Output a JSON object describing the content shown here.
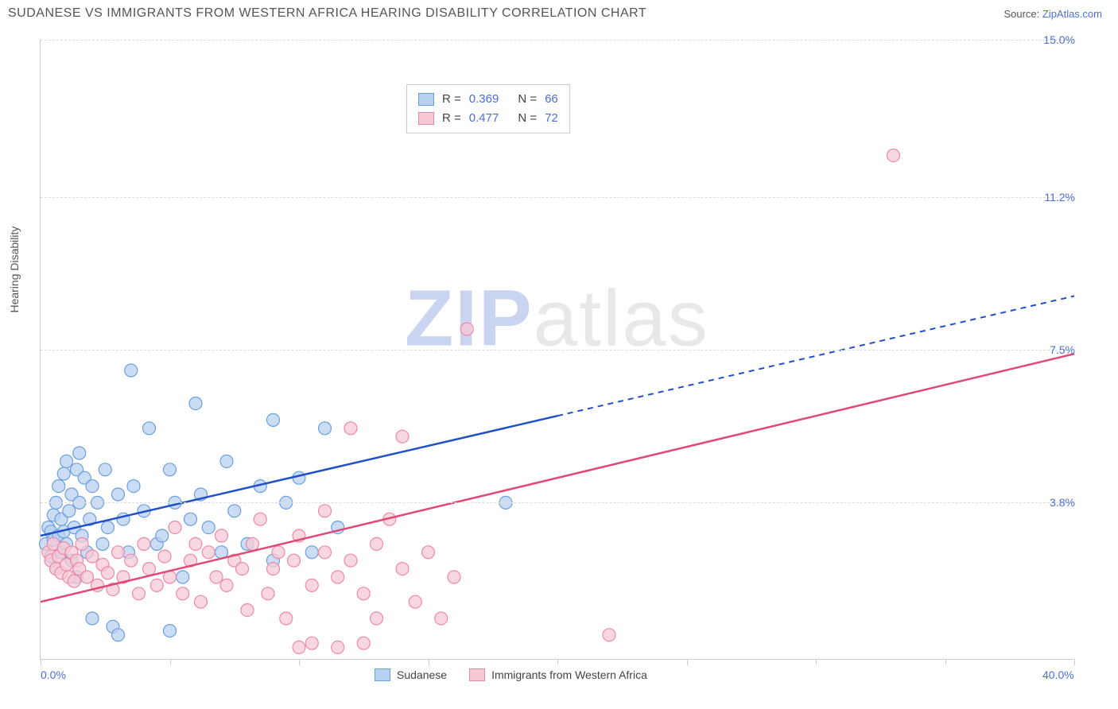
{
  "header": {
    "title": "SUDANESE VS IMMIGRANTS FROM WESTERN AFRICA HEARING DISABILITY CORRELATION CHART",
    "source_prefix": "Source: ",
    "source_link": "ZipAtlas.com"
  },
  "chart": {
    "type": "scatter",
    "y_title": "Hearing Disability",
    "background_color": "#ffffff",
    "grid_color": "#dddddd",
    "axis_color": "#cccccc",
    "xlim": [
      0,
      40
    ],
    "ylim": [
      0,
      15
    ],
    "x_ticks": [
      0,
      5,
      10,
      15,
      20,
      25,
      30,
      35,
      40
    ],
    "x_labels": [
      {
        "v": 0,
        "t": "0.0%"
      },
      {
        "v": 40,
        "t": "40.0%"
      }
    ],
    "y_labels": [
      {
        "v": 3.8,
        "t": "3.8%"
      },
      {
        "v": 7.5,
        "t": "7.5%"
      },
      {
        "v": 11.2,
        "t": "11.2%"
      },
      {
        "v": 15.0,
        "t": "15.0%"
      }
    ],
    "watermark": {
      "bold": "ZIP",
      "rest": "atlas"
    },
    "series": [
      {
        "name": "Sudanese",
        "fill": "#b9d1f0",
        "stroke": "#6a9fe0",
        "line_color": "#2050c8",
        "R": "0.369",
        "N": "66",
        "trend": {
          "x1": 0,
          "y1": 3.0,
          "x2": 20,
          "y2": 5.9,
          "x2_dash": 40,
          "y2_dash": 8.8
        },
        "points": [
          [
            0.2,
            2.8
          ],
          [
            0.3,
            3.2
          ],
          [
            0.4,
            2.5
          ],
          [
            0.4,
            3.1
          ],
          [
            0.5,
            3.5
          ],
          [
            0.5,
            2.9
          ],
          [
            0.6,
            3.8
          ],
          [
            0.6,
            2.2
          ],
          [
            0.7,
            3.0
          ],
          [
            0.7,
            4.2
          ],
          [
            0.8,
            3.4
          ],
          [
            0.8,
            2.6
          ],
          [
            0.9,
            4.5
          ],
          [
            0.9,
            3.1
          ],
          [
            1.0,
            2.8
          ],
          [
            1.0,
            4.8
          ],
          [
            1.1,
            3.6
          ],
          [
            1.2,
            2.4
          ],
          [
            1.2,
            4.0
          ],
          [
            1.3,
            3.2
          ],
          [
            1.4,
            4.6
          ],
          [
            1.4,
            2.0
          ],
          [
            1.5,
            3.8
          ],
          [
            1.5,
            5.0
          ],
          [
            1.6,
            3.0
          ],
          [
            1.7,
            4.4
          ],
          [
            1.8,
            2.6
          ],
          [
            1.9,
            3.4
          ],
          [
            2.0,
            4.2
          ],
          [
            2.0,
            1.0
          ],
          [
            2.2,
            3.8
          ],
          [
            2.4,
            2.8
          ],
          [
            2.5,
            4.6
          ],
          [
            2.6,
            3.2
          ],
          [
            2.8,
            0.8
          ],
          [
            3.0,
            4.0
          ],
          [
            3.2,
            3.4
          ],
          [
            3.4,
            2.6
          ],
          [
            3.5,
            7.0
          ],
          [
            3.6,
            4.2
          ],
          [
            4.0,
            3.6
          ],
          [
            4.2,
            5.6
          ],
          [
            4.5,
            2.8
          ],
          [
            4.7,
            3.0
          ],
          [
            5.0,
            4.6
          ],
          [
            5.2,
            3.8
          ],
          [
            5.5,
            2.0
          ],
          [
            5.8,
            3.4
          ],
          [
            6.0,
            6.2
          ],
          [
            6.2,
            4.0
          ],
          [
            6.5,
            3.2
          ],
          [
            7.0,
            2.6
          ],
          [
            7.2,
            4.8
          ],
          [
            7.5,
            3.6
          ],
          [
            8.0,
            2.8
          ],
          [
            8.5,
            4.2
          ],
          [
            9.0,
            5.8
          ],
          [
            9.0,
            2.4
          ],
          [
            9.5,
            3.8
          ],
          [
            10.0,
            4.4
          ],
          [
            10.5,
            2.6
          ],
          [
            11.0,
            5.6
          ],
          [
            11.5,
            3.2
          ],
          [
            18.0,
            3.8
          ],
          [
            3.0,
            0.6
          ],
          [
            5.0,
            0.7
          ]
        ]
      },
      {
        "name": "Immigrants from Western Africa",
        "fill": "#f7c9d5",
        "stroke": "#ed89a8",
        "line_color": "#e04876",
        "R": "0.477",
        "N": "72",
        "trend": {
          "x1": 0,
          "y1": 1.4,
          "x2": 40,
          "y2": 7.4
        },
        "points": [
          [
            0.3,
            2.6
          ],
          [
            0.4,
            2.4
          ],
          [
            0.5,
            2.8
          ],
          [
            0.6,
            2.2
          ],
          [
            0.7,
            2.5
          ],
          [
            0.8,
            2.1
          ],
          [
            0.9,
            2.7
          ],
          [
            1.0,
            2.3
          ],
          [
            1.1,
            2.0
          ],
          [
            1.2,
            2.6
          ],
          [
            1.3,
            1.9
          ],
          [
            1.4,
            2.4
          ],
          [
            1.5,
            2.2
          ],
          [
            1.6,
            2.8
          ],
          [
            1.8,
            2.0
          ],
          [
            2.0,
            2.5
          ],
          [
            2.2,
            1.8
          ],
          [
            2.4,
            2.3
          ],
          [
            2.6,
            2.1
          ],
          [
            2.8,
            1.7
          ],
          [
            3.0,
            2.6
          ],
          [
            3.2,
            2.0
          ],
          [
            3.5,
            2.4
          ],
          [
            3.8,
            1.6
          ],
          [
            4.0,
            2.8
          ],
          [
            4.2,
            2.2
          ],
          [
            4.5,
            1.8
          ],
          [
            4.8,
            2.5
          ],
          [
            5.0,
            2.0
          ],
          [
            5.2,
            3.2
          ],
          [
            5.5,
            1.6
          ],
          [
            5.8,
            2.4
          ],
          [
            6.0,
            2.8
          ],
          [
            6.2,
            1.4
          ],
          [
            6.5,
            2.6
          ],
          [
            6.8,
            2.0
          ],
          [
            7.0,
            3.0
          ],
          [
            7.2,
            1.8
          ],
          [
            7.5,
            2.4
          ],
          [
            7.8,
            2.2
          ],
          [
            8.0,
            1.2
          ],
          [
            8.2,
            2.8
          ],
          [
            8.5,
            3.4
          ],
          [
            8.8,
            1.6
          ],
          [
            9.0,
            2.2
          ],
          [
            9.2,
            2.6
          ],
          [
            9.5,
            1.0
          ],
          [
            9.8,
            2.4
          ],
          [
            10.0,
            3.0
          ],
          [
            10.0,
            0.3
          ],
          [
            10.5,
            1.8
          ],
          [
            10.5,
            0.4
          ],
          [
            11.0,
            2.6
          ],
          [
            11.0,
            3.6
          ],
          [
            11.5,
            2.0
          ],
          [
            12.0,
            2.4
          ],
          [
            12.0,
            5.6
          ],
          [
            12.5,
            1.6
          ],
          [
            13.0,
            2.8
          ],
          [
            13.0,
            1.0
          ],
          [
            13.5,
            3.4
          ],
          [
            14.0,
            2.2
          ],
          [
            14.0,
            5.4
          ],
          [
            14.5,
            1.4
          ],
          [
            15.0,
            2.6
          ],
          [
            15.5,
            1.0
          ],
          [
            16.0,
            2.0
          ],
          [
            16.5,
            8.0
          ],
          [
            22.0,
            0.6
          ],
          [
            33.0,
            12.2
          ],
          [
            11.5,
            0.3
          ],
          [
            12.5,
            0.4
          ]
        ]
      }
    ],
    "legend_bottom": [
      {
        "label": "Sudanese",
        "fill": "#b9d1f0",
        "stroke": "#6a9fe0"
      },
      {
        "label": "Immigrants from Western Africa",
        "fill": "#f7c9d5",
        "stroke": "#ed89a8"
      }
    ]
  }
}
